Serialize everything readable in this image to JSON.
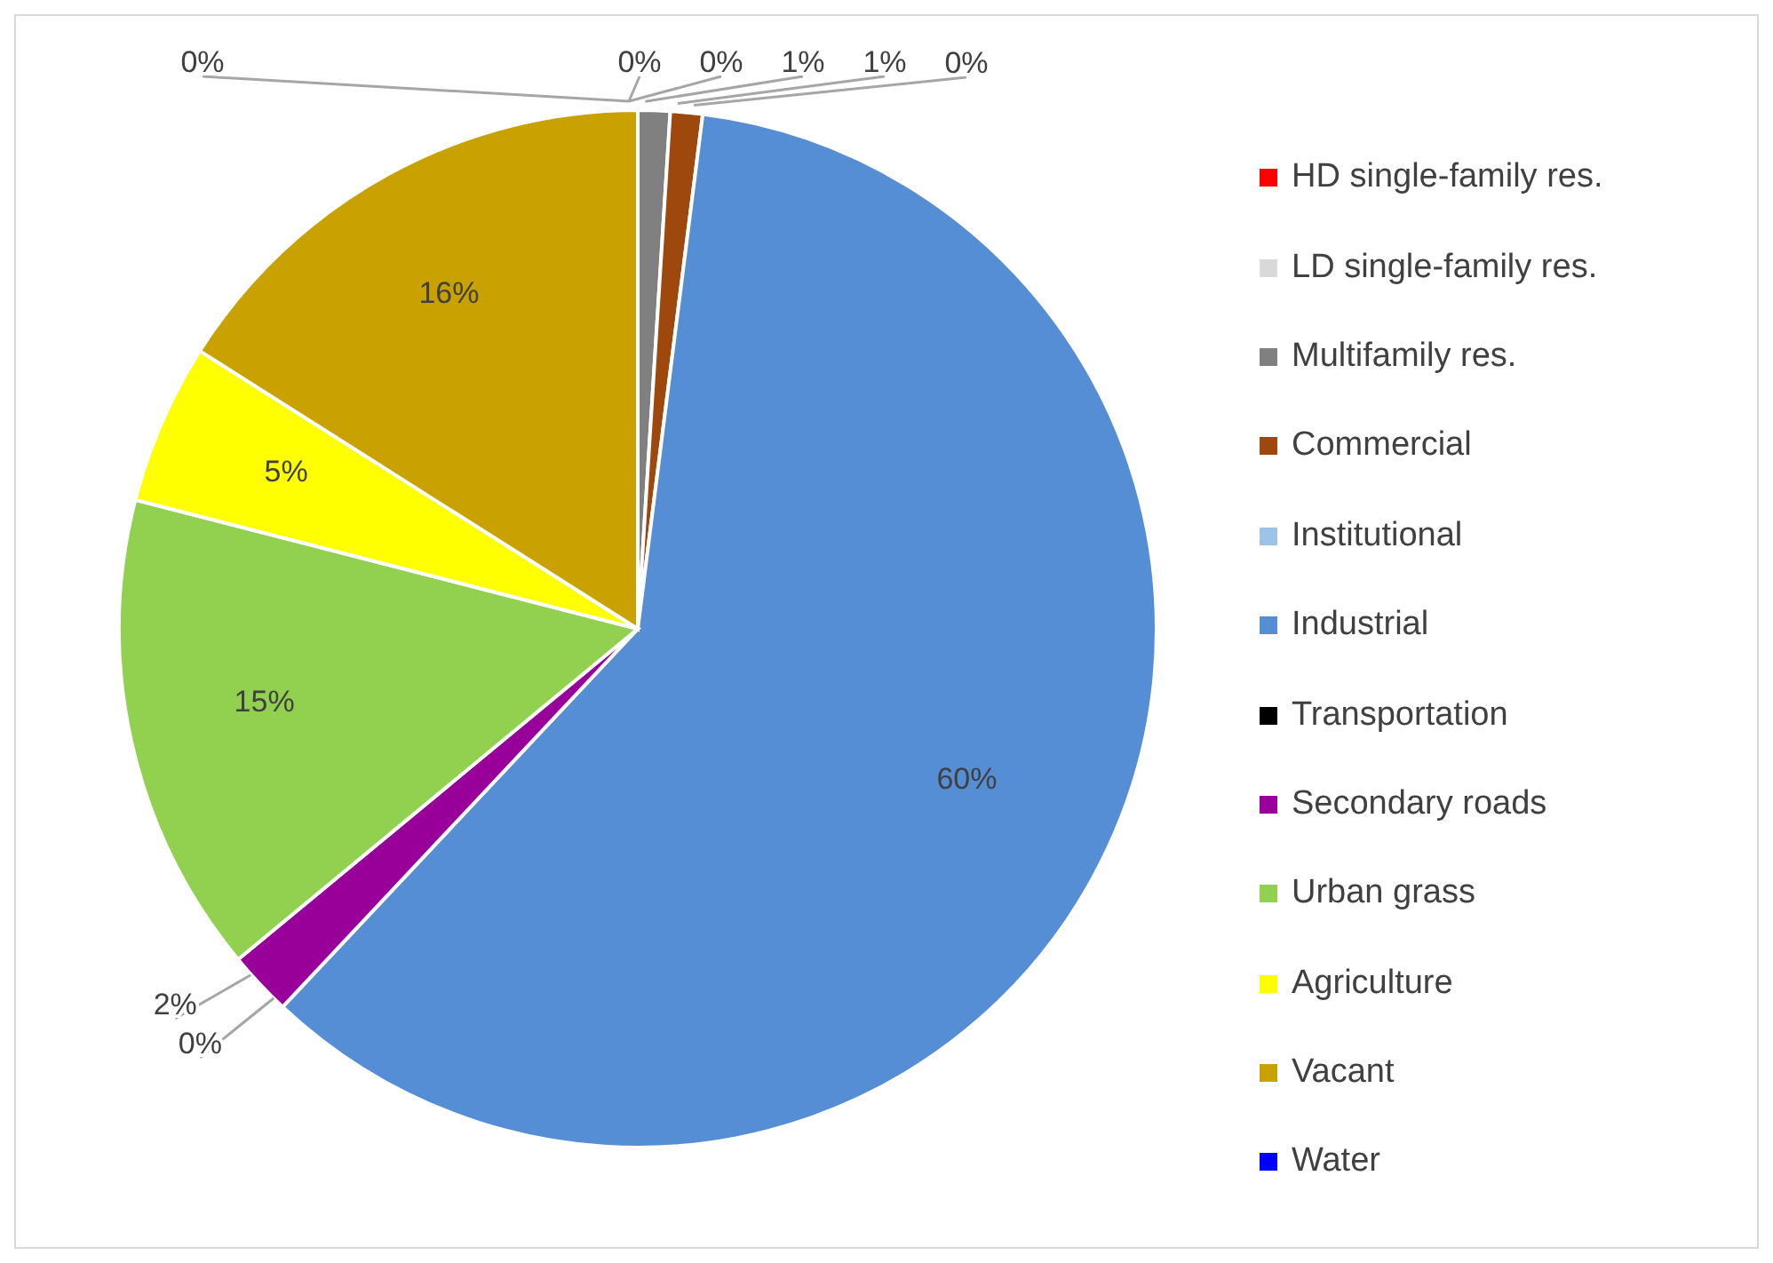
{
  "chart_data": {
    "type": "pie",
    "categories": [
      "HD single-family res.",
      "LD single-family res.",
      "Multifamily res.",
      "Commercial",
      "Institutional",
      "Industrial",
      "Transportation",
      "Secondary roads",
      "Urban grass",
      "Agriculture",
      "Vacant",
      "Water"
    ],
    "values": [
      0,
      0,
      1,
      1,
      0,
      60,
      0,
      2,
      15,
      5,
      16,
      0
    ],
    "colors": [
      "#ff0000",
      "#d9d9d9",
      "#808080",
      "#9e480e",
      "#9dc3e6",
      "#558ed5",
      "#000000",
      "#990099",
      "#92d050",
      "#ffff00",
      "#c9a100",
      "#0000ff"
    ],
    "value_labels": [
      "0%",
      "0%",
      "1%",
      "1%",
      "0%",
      "60%",
      "0%",
      "2%",
      "15%",
      "5%",
      "16%",
      "0%"
    ],
    "legend": "right"
  }
}
